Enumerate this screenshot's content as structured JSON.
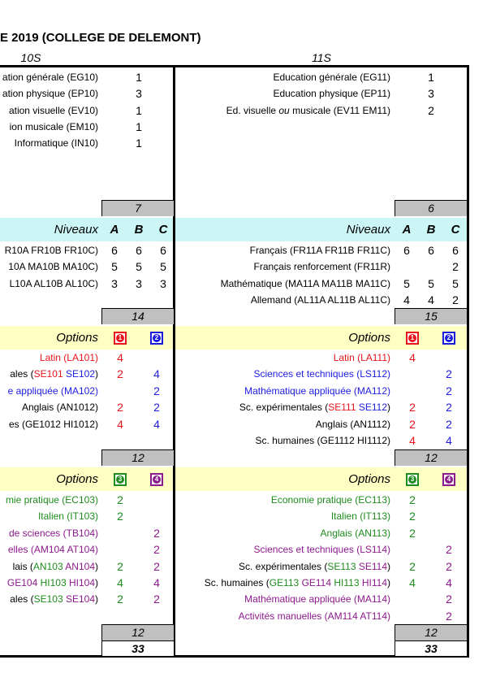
{
  "title": "E 2019 (COLLEGE DE DELEMONT)",
  "columns": [
    "10S",
    "11S"
  ],
  "sections": [
    {
      "kind": "base",
      "left": {
        "rows": [
          {
            "label": [
              {
                "text": "ation générale (EG10)"
              }
            ],
            "value": 1
          },
          {
            "label": [
              {
                "text": "ation physique (EP10)"
              }
            ],
            "value": 3
          },
          {
            "label": [
              {
                "text": "ation visuelle (EV10)"
              }
            ],
            "value": 1
          },
          {
            "label": [
              {
                "text": "ion musicale (EM10)"
              }
            ],
            "value": 1
          },
          {
            "label": [
              {
                "text": "Informatique (IN10)"
              }
            ],
            "value": 1
          }
        ],
        "total": 7
      },
      "right": {
        "rows": [
          {
            "label": [
              {
                "text": "Education générale (EG11)"
              }
            ],
            "value": 1
          },
          {
            "label": [
              {
                "text": "Education physique (EP11)"
              }
            ],
            "value": 3
          },
          {
            "label": [
              {
                "text": "Ed. visuelle "
              },
              {
                "text": "ou",
                "italic": true
              },
              {
                "text": " musicale (EV11 EM11)"
              }
            ],
            "value": 2
          }
        ],
        "total": 6
      }
    },
    {
      "kind": "levels",
      "header": "Niveaux",
      "levels": [
        "A",
        "B",
        "C"
      ],
      "band": "#ccf6f6",
      "left": {
        "rows": [
          {
            "label": [
              {
                "text": "R10A FR10B FR10C)"
              }
            ],
            "values": [
              6,
              6,
              6
            ]
          },
          {
            "label": [
              {
                "text": "10A MA10B MA10C)"
              }
            ],
            "values": [
              5,
              5,
              5
            ]
          },
          {
            "label": [
              {
                "text": "L10A AL10B AL10C)"
              }
            ],
            "values": [
              3,
              3,
              3
            ]
          }
        ],
        "total": 14
      },
      "right": {
        "rows": [
          {
            "label": [
              {
                "text": "Français (FR11A FR11B FR11C)"
              }
            ],
            "values": [
              6,
              6,
              6
            ]
          },
          {
            "label": [
              {
                "text": "Français renforcement (FR11R)"
              }
            ],
            "values": [
              null,
              null,
              2
            ]
          },
          {
            "label": [
              {
                "text": "Mathématique (MA11A MA11B MA11C)"
              }
            ],
            "values": [
              5,
              5,
              5
            ]
          },
          {
            "label": [
              {
                "text": "Allemand (AL11A AL11B AL11C)"
              }
            ],
            "values": [
              4,
              4,
              2
            ]
          }
        ],
        "total": 15
      }
    },
    {
      "kind": "options",
      "header": "Options",
      "band": "#ffffc4",
      "badges": [
        {
          "label": 1,
          "color": "#e8141b"
        },
        {
          "label": 2,
          "color": "#1c1ce0"
        }
      ],
      "left": {
        "rows": [
          {
            "label": [
              {
                "text": "Latin (LA101)",
                "color": "#e8141b"
              }
            ],
            "values": [
              4,
              null
            ]
          },
          {
            "label": [
              {
                "text": "ales ("
              },
              {
                "text": "SE101",
                "color": "#e8141b"
              },
              {
                "text": " "
              },
              {
                "text": "SE102",
                "color": "#1c1ce0"
              },
              {
                "text": ")"
              }
            ],
            "values": [
              2,
              4
            ]
          },
          {
            "label": [
              {
                "text": "e appliquée (MA102)",
                "color": "#1c1ce0"
              }
            ],
            "values": [
              null,
              2
            ]
          },
          {
            "label": [
              {
                "text": "Anglais (AN1012)"
              }
            ],
            "values": [
              2,
              2
            ]
          },
          {
            "label": [
              {
                "text": "es (GE1012 HI1012)"
              }
            ],
            "values": [
              4,
              4
            ]
          }
        ],
        "total": 12
      },
      "right": {
        "rows": [
          {
            "label": [
              {
                "text": "Latin (LA111)",
                "color": "#e8141b"
              }
            ],
            "values": [
              4,
              null
            ]
          },
          {
            "label": [
              {
                "text": "Sciences et techniques (LS112)",
                "color": "#1c1ce0"
              }
            ],
            "values": [
              null,
              2
            ]
          },
          {
            "label": [
              {
                "text": "Mathématique appliquée (MA112)",
                "color": "#1c1ce0"
              }
            ],
            "values": [
              null,
              2
            ]
          },
          {
            "label": [
              {
                "text": "Sc. expérimentales ("
              },
              {
                "text": "SE111",
                "color": "#e8141b"
              },
              {
                "text": " "
              },
              {
                "text": "SE112",
                "color": "#1c1ce0"
              },
              {
                "text": ")"
              }
            ],
            "values": [
              2,
              2
            ]
          },
          {
            "label": [
              {
                "text": "Anglais (AN1112)"
              }
            ],
            "values": [
              2,
              2
            ]
          },
          {
            "label": [
              {
                "text": "Sc. humaines (GE1112 HI1112)"
              }
            ],
            "values": [
              4,
              4
            ]
          }
        ],
        "total": 12
      }
    },
    {
      "kind": "options",
      "header": "Options",
      "band": "#ffffc4",
      "badges": [
        {
          "label": 3,
          "color": "#1e8c1e"
        },
        {
          "label": 4,
          "color": "#8c1a8c"
        }
      ],
      "left": {
        "rows": [
          {
            "label": [
              {
                "text": "mie pratique (EC103)",
                "color": "#1e8c1e"
              }
            ],
            "values": [
              2,
              null
            ]
          },
          {
            "label": [
              {
                "text": "Italien (IT103)",
                "color": "#1e8c1e"
              }
            ],
            "values": [
              2,
              null
            ]
          },
          {
            "label": [
              {
                "text": "de sciences (TB104)",
                "color": "#8c1a8c"
              }
            ],
            "values": [
              null,
              2
            ]
          },
          {
            "label": [
              {
                "text": "elles (AM104 AT104)",
                "color": "#8c1a8c"
              }
            ],
            "values": [
              null,
              2
            ]
          },
          {
            "label": [
              {
                "text": "lais ("
              },
              {
                "text": "AN103",
                "color": "#1e8c1e"
              },
              {
                "text": " "
              },
              {
                "text": "AN104",
                "color": "#8c1a8c"
              },
              {
                "text": ")"
              }
            ],
            "values": [
              2,
              2
            ]
          },
          {
            "label": [
              {
                "text": "GE104",
                "color": "#8c1a8c"
              },
              {
                "text": " "
              },
              {
                "text": "HI103",
                "color": "#1e8c1e"
              },
              {
                "text": " "
              },
              {
                "text": "HI104",
                "color": "#8c1a8c"
              },
              {
                "text": ")"
              }
            ],
            "values": [
              4,
              4
            ]
          },
          {
            "label": [
              {
                "text": "ales ("
              },
              {
                "text": "SE103",
                "color": "#1e8c1e"
              },
              {
                "text": " "
              },
              {
                "text": "SE104",
                "color": "#8c1a8c"
              },
              {
                "text": ")"
              }
            ],
            "values": [
              2,
              2
            ]
          }
        ],
        "total": 12
      },
      "right": {
        "rows": [
          {
            "label": [
              {
                "text": "Economie pratique (EC113)",
                "color": "#1e8c1e"
              }
            ],
            "values": [
              2,
              null
            ]
          },
          {
            "label": [
              {
                "text": "Italien (IT113)",
                "color": "#1e8c1e"
              }
            ],
            "values": [
              2,
              null
            ]
          },
          {
            "label": [
              {
                "text": "Anglais (AN113)",
                "color": "#1e8c1e"
              }
            ],
            "values": [
              2,
              null
            ]
          },
          {
            "label": [
              {
                "text": "Sciences et techniques (LS114)",
                "color": "#8c1a8c"
              }
            ],
            "values": [
              null,
              2
            ]
          },
          {
            "label": [
              {
                "text": "Sc. expérimentales ("
              },
              {
                "text": "SE113",
                "color": "#1e8c1e"
              },
              {
                "text": " "
              },
              {
                "text": "SE114",
                "color": "#8c1a8c"
              },
              {
                "text": ")"
              }
            ],
            "values": [
              2,
              2
            ]
          },
          {
            "label": [
              {
                "text": "Sc. humaines ("
              },
              {
                "text": "GE113",
                "color": "#1e8c1e"
              },
              {
                "text": " "
              },
              {
                "text": "GE114",
                "color": "#8c1a8c"
              },
              {
                "text": " "
              },
              {
                "text": "HI113",
                "color": "#1e8c1e"
              },
              {
                "text": " "
              },
              {
                "text": "HI114",
                "color": "#8c1a8c"
              },
              {
                "text": ")"
              }
            ],
            "values": [
              4,
              4
            ]
          },
          {
            "label": [
              {
                "text": "Mathématique appliquée (MA114)",
                "color": "#8c1a8c"
              }
            ],
            "values": [
              null,
              2
            ]
          },
          {
            "label": [
              {
                "text": "Activités manuelles (AM114 AT114)",
                "color": "#8c1a8c"
              }
            ],
            "values": [
              null,
              2
            ]
          }
        ],
        "total": 12
      }
    }
  ],
  "grand_total": [
    33,
    33
  ]
}
